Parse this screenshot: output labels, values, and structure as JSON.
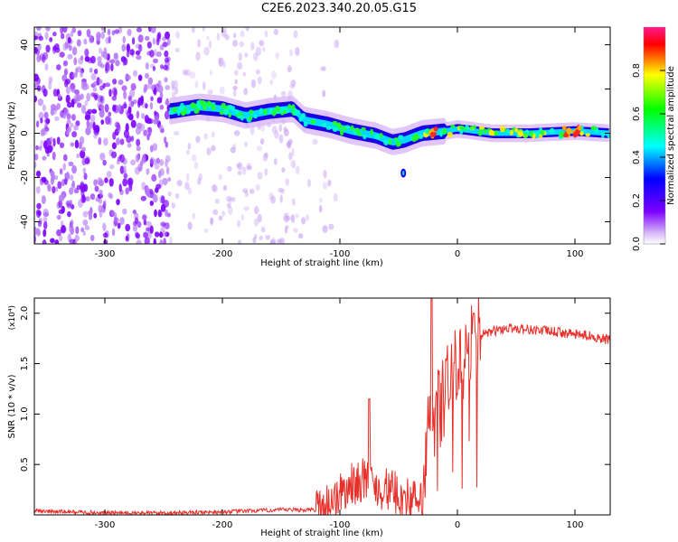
{
  "title": "C2E6.2023.340.20.05.G15",
  "chart_data": [
    {
      "type": "heatmap",
      "xlabel": "Height of straight line (km)",
      "ylabel": "Frequency (Hz)",
      "xlim": [
        -360,
        130
      ],
      "ylim": [
        -50,
        48
      ],
      "xticks": [
        -300,
        -200,
        -100,
        0,
        100
      ],
      "yticks": [
        -40,
        -20,
        0,
        20,
        40
      ],
      "grid": false,
      "colorbar": {
        "label": "Normalized spectral amplitude",
        "range": [
          0,
          1
        ],
        "ticks": [
          "0.0",
          "0.2",
          "0.4",
          "0.6",
          "0.8"
        ],
        "colors": [
          "#ffffff",
          "#d9b8f7",
          "#7b00ff",
          "#0000ff",
          "#00ffff",
          "#00ff00",
          "#ffff00",
          "#ff0000",
          "#ff1a8c"
        ]
      },
      "ridge": [
        {
          "x": -245,
          "y": 10
        },
        {
          "x": -220,
          "y": 12
        },
        {
          "x": -200,
          "y": 11
        },
        {
          "x": -180,
          "y": 8
        },
        {
          "x": -160,
          "y": 10
        },
        {
          "x": -140,
          "y": 11
        },
        {
          "x": -130,
          "y": 6
        },
        {
          "x": -110,
          "y": 4
        },
        {
          "x": -90,
          "y": 1
        },
        {
          "x": -70,
          "y": -1
        },
        {
          "x": -55,
          "y": -4
        },
        {
          "x": -45,
          "y": -3
        },
        {
          "x": -30,
          "y": 0
        },
        {
          "x": -10,
          "y": 1
        },
        {
          "x": 0,
          "y": 2
        },
        {
          "x": 30,
          "y": 0
        },
        {
          "x": 60,
          "y": 0
        },
        {
          "x": 100,
          "y": 1
        },
        {
          "x": 130,
          "y": 0
        }
      ]
    },
    {
      "type": "line",
      "xlabel": "Height of straight line (km)",
      "ylabel": "SNR (10 * v/v)",
      "y_multiplier": "(x10⁴)",
      "xlim": [
        -360,
        130
      ],
      "ylim": [
        0,
        2.15
      ],
      "xticks": [
        -300,
        -200,
        -100,
        0,
        100
      ],
      "yticks": [
        "0.5",
        "1.0",
        "1.5",
        "2.0"
      ],
      "grid": false,
      "color": "#e8302a",
      "x": [
        -360,
        -300,
        -250,
        -200,
        -150,
        -120,
        -110,
        -100,
        -90,
        -80,
        -70,
        -60,
        -50,
        -40,
        -30,
        -25,
        -20,
        -15,
        -10,
        -5,
        0,
        5,
        10,
        15,
        20,
        30,
        40,
        50,
        60,
        80,
        100,
        110,
        120,
        130
      ],
      "y": [
        0.04,
        0.02,
        0.02,
        0.03,
        0.05,
        0.05,
        0.12,
        0.2,
        0.3,
        0.35,
        0.28,
        0.25,
        0.2,
        0.15,
        0.1,
        0.8,
        1.05,
        1.2,
        1.3,
        1.35,
        1.45,
        1.55,
        1.6,
        1.7,
        1.78,
        1.82,
        1.85,
        1.85,
        1.84,
        1.82,
        1.79,
        1.78,
        1.76,
        1.73
      ]
    }
  ]
}
